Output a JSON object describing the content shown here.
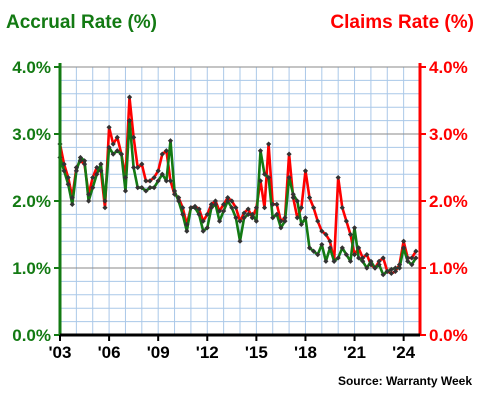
{
  "chart_data": {
    "type": "line",
    "title_left": "Accrual Rate (%)",
    "title_right": "Claims Rate (%)",
    "source": "Source: Warranty Week",
    "colors": {
      "accrual": "#137a13",
      "claims": "#ff0000",
      "grid": "#aac8e8",
      "text_left": "#137a13",
      "text_right": "#ff0000"
    },
    "x_range": [
      2003.0,
      2025.0
    ],
    "y_range": [
      0,
      4
    ],
    "grid": true,
    "y_ticks_left": [
      "0.0%",
      "1.0%",
      "2.0%",
      "3.0%",
      "4.0%"
    ],
    "y_ticks_right": [
      "0.0%",
      "1.0%",
      "2.0%",
      "3.0%",
      "4.0%"
    ],
    "x_ticks": [
      {
        "x": 2003,
        "label": "'03"
      },
      {
        "x": 2006,
        "label": "'06"
      },
      {
        "x": 2009,
        "label": "'09"
      },
      {
        "x": 2012,
        "label": "'12"
      },
      {
        "x": 2015,
        "label": "'15"
      },
      {
        "x": 2018,
        "label": "'18"
      },
      {
        "x": 2021,
        "label": "'21"
      },
      {
        "x": 2024,
        "label": "'24"
      }
    ],
    "series": [
      {
        "key": "claims",
        "x": [
          2003.0,
          2003.25,
          2003.5,
          2003.75,
          2004.0,
          2004.25,
          2004.5,
          2004.75,
          2005.0,
          2005.25,
          2005.5,
          2005.75,
          2006.0,
          2006.25,
          2006.5,
          2006.75,
          2007.0,
          2007.25,
          2007.5,
          2007.75,
          2008.0,
          2008.25,
          2008.5,
          2008.75,
          2009.0,
          2009.25,
          2009.5,
          2009.75,
          2010.0,
          2010.25,
          2010.5,
          2010.75,
          2011.0,
          2011.25,
          2011.5,
          2011.75,
          2012.0,
          2012.25,
          2012.5,
          2012.75,
          2013.0,
          2013.25,
          2013.5,
          2013.75,
          2014.0,
          2014.25,
          2014.5,
          2014.75,
          2015.0,
          2015.25,
          2015.5,
          2015.75,
          2016.0,
          2016.25,
          2016.5,
          2016.75,
          2017.0,
          2017.25,
          2017.5,
          2017.75,
          2018.0,
          2018.25,
          2018.5,
          2018.75,
          2019.0,
          2019.25,
          2019.5,
          2019.75,
          2020.0,
          2020.25,
          2020.5,
          2020.75,
          2021.0,
          2021.25,
          2021.5,
          2021.75,
          2022.0,
          2022.25,
          2022.5,
          2022.75,
          2023.0,
          2023.25,
          2023.5,
          2023.75,
          2024.0,
          2024.25,
          2024.5,
          2024.75
        ],
        "values": [
          2.85,
          2.55,
          2.35,
          2.05,
          2.5,
          2.6,
          2.55,
          2.1,
          2.35,
          2.5,
          2.45,
          1.9,
          3.1,
          2.85,
          2.95,
          2.7,
          2.35,
          3.55,
          2.95,
          2.5,
          2.55,
          2.3,
          2.3,
          2.35,
          2.45,
          2.7,
          2.75,
          2.3,
          2.1,
          2.05,
          1.9,
          1.65,
          1.9,
          1.92,
          1.88,
          1.7,
          1.8,
          1.95,
          2.0,
          1.85,
          1.95,
          2.05,
          2.0,
          1.9,
          1.7,
          1.82,
          1.88,
          1.75,
          1.9,
          2.3,
          1.9,
          2.85,
          1.95,
          1.95,
          1.7,
          1.75,
          2.7,
          2.05,
          1.75,
          1.9,
          2.45,
          2.05,
          1.9,
          1.7,
          1.55,
          1.5,
          1.4,
          1.1,
          2.35,
          1.9,
          1.7,
          1.5,
          1.2,
          1.3,
          1.15,
          1.2,
          1.05,
          1.0,
          1.1,
          1.15,
          0.95,
          0.92,
          0.95,
          1.05,
          1.4,
          1.15,
          1.15,
          1.25
        ]
      },
      {
        "key": "accrual",
        "x": [
          2003.0,
          2003.25,
          2003.5,
          2003.75,
          2004.0,
          2004.25,
          2004.5,
          2004.75,
          2005.0,
          2005.25,
          2005.5,
          2005.75,
          2006.0,
          2006.25,
          2006.5,
          2006.75,
          2007.0,
          2007.25,
          2007.5,
          2007.75,
          2008.0,
          2008.25,
          2008.5,
          2008.75,
          2009.0,
          2009.25,
          2009.5,
          2009.75,
          2010.0,
          2010.25,
          2010.5,
          2010.75,
          2011.0,
          2011.25,
          2011.5,
          2011.75,
          2012.0,
          2012.25,
          2012.5,
          2012.75,
          2013.0,
          2013.25,
          2013.5,
          2013.75,
          2014.0,
          2014.25,
          2014.5,
          2014.75,
          2015.0,
          2015.25,
          2015.5,
          2015.75,
          2016.0,
          2016.25,
          2016.5,
          2016.75,
          2017.0,
          2017.25,
          2017.5,
          2017.75,
          2018.0,
          2018.25,
          2018.5,
          2018.75,
          2019.0,
          2019.25,
          2019.5,
          2019.75,
          2020.0,
          2020.25,
          2020.5,
          2020.75,
          2021.0,
          2021.25,
          2021.5,
          2021.75,
          2022.0,
          2022.25,
          2022.5,
          2022.75,
          2023.0,
          2023.25,
          2023.5,
          2023.75,
          2024.0,
          2024.25,
          2024.5,
          2024.75
        ],
        "values": [
          2.65,
          2.45,
          2.25,
          1.95,
          2.45,
          2.65,
          2.6,
          2.0,
          2.2,
          2.4,
          2.55,
          2.0,
          2.8,
          2.7,
          2.75,
          2.7,
          2.15,
          3.2,
          2.5,
          2.2,
          2.2,
          2.15,
          2.2,
          2.2,
          2.3,
          2.4,
          2.3,
          2.9,
          2.15,
          2.0,
          1.8,
          1.55,
          1.9,
          1.9,
          1.8,
          1.55,
          1.6,
          1.9,
          1.95,
          1.7,
          1.85,
          2.0,
          1.9,
          1.75,
          1.4,
          1.75,
          1.8,
          1.8,
          1.7,
          2.75,
          2.4,
          2.35,
          1.75,
          1.8,
          1.6,
          1.7,
          2.35,
          2.1,
          2.0,
          1.65,
          1.75,
          1.3,
          1.25,
          1.2,
          1.35,
          1.1,
          1.3,
          1.1,
          1.15,
          1.3,
          1.2,
          1.1,
          1.6,
          1.15,
          1.1,
          1.0,
          1.1,
          1.0,
          1.05,
          0.9,
          0.95,
          0.98,
          1.0,
          1.0,
          1.3,
          1.1,
          1.05,
          1.15
        ]
      }
    ]
  }
}
